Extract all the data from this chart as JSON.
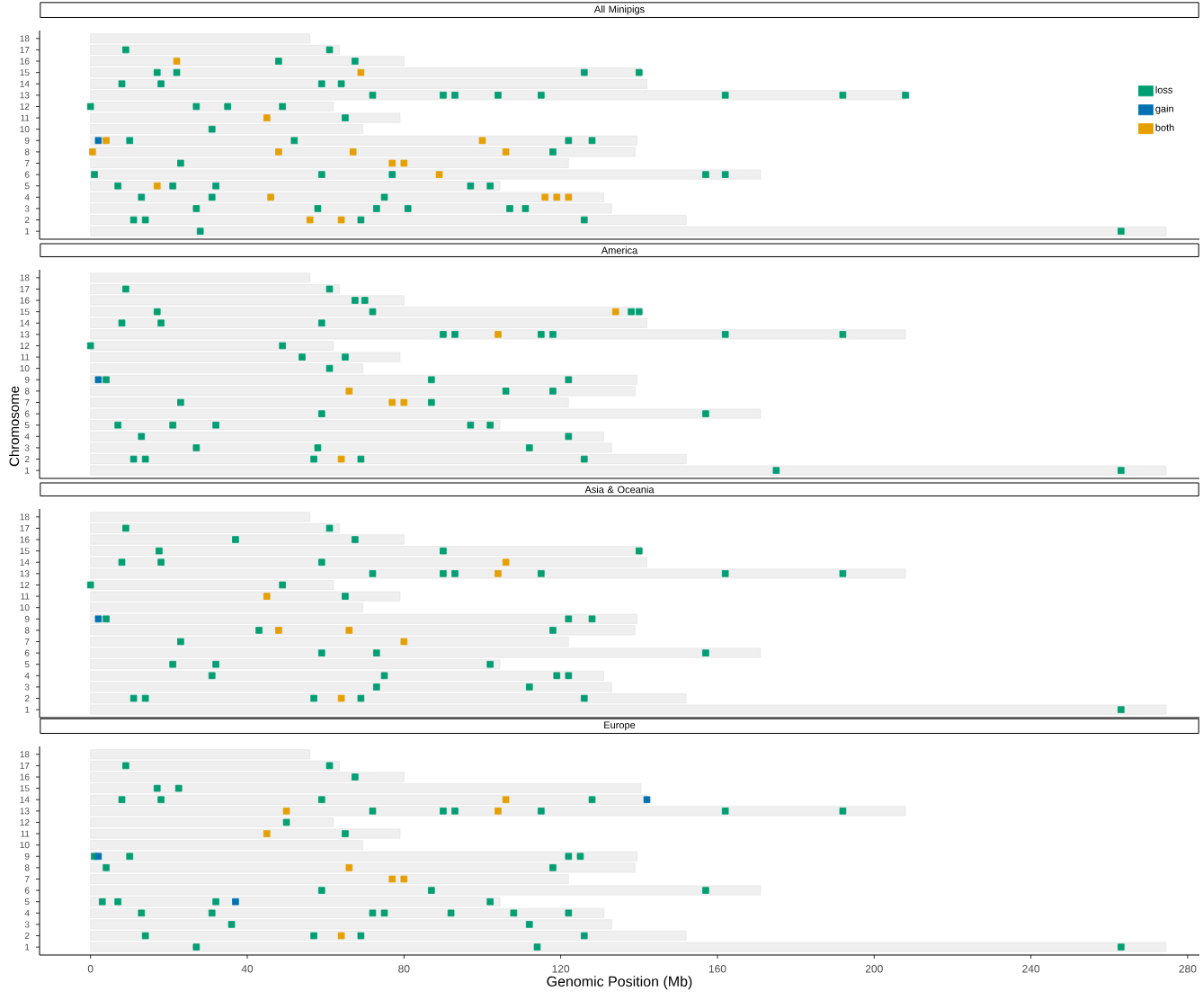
{
  "chart_data": [
    {
      "type": "bar",
      "orientation": "horizontal",
      "title": "All Minipigs",
      "categories": [
        "18",
        "17",
        "16",
        "15",
        "14",
        "13",
        "12",
        "11",
        "10",
        "9",
        "8",
        "7",
        "6",
        "5",
        "4",
        "3",
        "2",
        "1"
      ],
      "xlim": [
        -13,
        283
      ],
      "tick_labels": "y",
      "legend": "right",
      "marker": "square",
      "series": [
        {
          "type": "bar",
          "color": "#efefef",
          "values": [
            56,
            63.5,
            80,
            140.5,
            142,
            208,
            62,
            79,
            69.5,
            139.5,
            139,
            122,
            171,
            104.5,
            131,
            133,
            152,
            274.5
          ]
        },
        {
          "type": "scatter",
          "name": "loss",
          "color": "#009E73",
          "x": [
            "17",
            "17",
            "16",
            "16",
            "15",
            "15",
            "15",
            "15",
            "14",
            "14",
            "14",
            "14",
            "13",
            "13",
            "13",
            "13",
            "13",
            "13",
            "13",
            "13",
            "12",
            "12",
            "12",
            "12",
            "11",
            "10",
            "9",
            "9",
            "9",
            "9",
            "8",
            "7",
            "6",
            "6",
            "6",
            "6",
            "6",
            "5",
            "5",
            "5",
            "5",
            "5",
            "4",
            "4",
            "4",
            "3",
            "3",
            "3",
            "3",
            "3",
            "3",
            "2",
            "2",
            "2",
            "2",
            "1",
            "1"
          ],
          "values": [
            9,
            61,
            48,
            67.5,
            17,
            22,
            126,
            140,
            8,
            18,
            59,
            64,
            72,
            90,
            93,
            104,
            115,
            162,
            192,
            208,
            0,
            27,
            35,
            49,
            65,
            31,
            10,
            52,
            122,
            128,
            118,
            23,
            1,
            59,
            77,
            157,
            162,
            7,
            21,
            32,
            97,
            102,
            13,
            31,
            75,
            27,
            58,
            73,
            81,
            107,
            111,
            11,
            14,
            69,
            126,
            28,
            263
          ]
        },
        {
          "type": "scatter",
          "name": "gain",
          "color": "#0072B2",
          "x": [
            "9"
          ],
          "values": [
            2
          ]
        },
        {
          "type": "scatter",
          "name": "both",
          "color": "#E69F00",
          "x": [
            "16",
            "15",
            "11",
            "9",
            "9",
            "8",
            "8",
            "8",
            "8",
            "7",
            "7",
            "6",
            "5",
            "4",
            "4",
            "4",
            "4",
            "2",
            "2"
          ],
          "values": [
            22,
            69,
            45,
            4,
            100,
            0.5,
            48,
            67,
            106,
            77,
            80,
            89,
            17,
            46,
            116,
            119,
            122,
            56,
            64
          ]
        }
      ]
    },
    {
      "type": "bar",
      "orientation": "horizontal",
      "title": "America",
      "ylabel": "Chromosome",
      "categories": [
        "18",
        "17",
        "16",
        "15",
        "14",
        "13",
        "12",
        "11",
        "10",
        "9",
        "8",
        "7",
        "6",
        "5",
        "4",
        "3",
        "2",
        "1"
      ],
      "xlim": [
        -13,
        283
      ],
      "tick_labels": "y",
      "marker": "square",
      "series": [
        {
          "type": "bar",
          "color": "#efefef",
          "values": [
            56,
            63.5,
            80,
            140.5,
            142,
            208,
            62,
            79,
            69.5,
            139.5,
            139,
            122,
            171,
            104.5,
            131,
            133,
            152,
            274.5
          ]
        },
        {
          "type": "scatter",
          "color": "#009E73",
          "x": [
            "17",
            "17",
            "16",
            "16",
            "15",
            "15",
            "15",
            "15",
            "14",
            "14",
            "14",
            "13",
            "13",
            "13",
            "13",
            "13",
            "13",
            "12",
            "12",
            "11",
            "11",
            "10",
            "9",
            "9",
            "9",
            "8",
            "8",
            "7",
            "7",
            "6",
            "6",
            "5",
            "5",
            "5",
            "5",
            "5",
            "4",
            "4",
            "3",
            "3",
            "3",
            "2",
            "2",
            "2",
            "2",
            "2",
            "1",
            "1"
          ],
          "values": [
            9,
            61,
            67.5,
            70,
            17,
            72,
            138,
            140,
            8,
            18,
            59,
            90,
            93,
            115,
            118,
            162,
            192,
            0,
            49,
            54,
            65,
            61,
            4,
            87,
            122,
            106,
            118,
            23,
            87,
            59,
            157,
            7,
            21,
            32,
            97,
            102,
            13,
            122,
            27,
            58,
            112,
            11,
            14,
            57,
            69,
            126,
            175,
            263
          ]
        },
        {
          "type": "scatter",
          "color": "#0072B2",
          "x": [
            "9"
          ],
          "values": [
            2
          ]
        },
        {
          "type": "scatter",
          "color": "#E69F00",
          "x": [
            "15",
            "13",
            "8",
            "7",
            "7",
            "2"
          ],
          "values": [
            134,
            104,
            66,
            77,
            80,
            64
          ]
        }
      ]
    },
    {
      "type": "bar",
      "orientation": "horizontal",
      "title": "Asia & Oceania",
      "categories": [
        "18",
        "17",
        "16",
        "15",
        "14",
        "13",
        "12",
        "11",
        "10",
        "9",
        "8",
        "7",
        "6",
        "5",
        "4",
        "3",
        "2",
        "1"
      ],
      "xlim": [
        -13,
        283
      ],
      "tick_labels": "y",
      "marker": "square",
      "series": [
        {
          "type": "bar",
          "color": "#efefef",
          "values": [
            56,
            63.5,
            80,
            140.5,
            142,
            208,
            62,
            79,
            69.5,
            139.5,
            139,
            122,
            171,
            104.5,
            131,
            133,
            152,
            274.5
          ]
        },
        {
          "type": "scatter",
          "color": "#009E73",
          "x": [
            "17",
            "17",
            "16",
            "16",
            "15",
            "15",
            "15",
            "14",
            "14",
            "14",
            "13",
            "13",
            "13",
            "13",
            "13",
            "13",
            "12",
            "12",
            "11",
            "9",
            "9",
            "9",
            "8",
            "8",
            "7",
            "6",
            "6",
            "6",
            "5",
            "5",
            "5",
            "4",
            "4",
            "4",
            "4",
            "3",
            "3",
            "2",
            "2",
            "2",
            "2",
            "2",
            "1"
          ],
          "values": [
            9,
            61,
            37,
            67.5,
            17.5,
            90,
            140,
            8,
            18,
            59,
            72,
            90,
            93,
            115,
            162,
            192,
            0,
            49,
            65,
            4,
            122,
            128,
            43,
            118,
            23,
            59,
            73,
            157,
            21,
            32,
            102,
            31,
            75,
            119,
            122,
            73,
            112,
            11,
            14,
            57,
            69,
            126,
            263
          ]
        },
        {
          "type": "scatter",
          "color": "#0072B2",
          "x": [
            "9"
          ],
          "values": [
            2
          ]
        },
        {
          "type": "scatter",
          "color": "#E69F00",
          "x": [
            "14",
            "13",
            "11",
            "8",
            "8",
            "7",
            "2"
          ],
          "values": [
            106,
            104,
            45,
            48,
            66,
            80,
            64
          ]
        }
      ]
    },
    {
      "type": "bar",
      "orientation": "horizontal",
      "title": "Europe",
      "xlabel": "Genomic Position (Mb)",
      "categories": [
        "18",
        "17",
        "16",
        "15",
        "14",
        "13",
        "12",
        "11",
        "10",
        "9",
        "8",
        "7",
        "6",
        "5",
        "4",
        "3",
        "2",
        "1"
      ],
      "xlim": [
        -13,
        283
      ],
      "xticks": [
        0,
        40,
        80,
        120,
        160,
        200,
        240,
        280
      ],
      "marker": "square",
      "series": [
        {
          "type": "bar",
          "color": "#efefef",
          "values": [
            56,
            63.5,
            80,
            140.5,
            142,
            208,
            62,
            79,
            69.5,
            139.5,
            139,
            122,
            171,
            104.5,
            131,
            133,
            152,
            274.5
          ]
        },
        {
          "type": "scatter",
          "color": "#009E73",
          "x": [
            "17",
            "17",
            "16",
            "15",
            "15",
            "14",
            "14",
            "14",
            "14",
            "13",
            "13",
            "13",
            "13",
            "13",
            "13",
            "12",
            "11",
            "9",
            "9",
            "9",
            "9",
            "8",
            "8",
            "6",
            "6",
            "6",
            "5",
            "5",
            "5",
            "5",
            "4",
            "4",
            "4",
            "4",
            "4",
            "4",
            "4",
            "3",
            "3",
            "2",
            "2",
            "2",
            "2",
            "1",
            "1",
            "1"
          ],
          "values": [
            9,
            61,
            67.5,
            17,
            22.5,
            8,
            18,
            59,
            128,
            72,
            90,
            93,
            115,
            162,
            192,
            50,
            65,
            1,
            10,
            122,
            125,
            4,
            118,
            59,
            87,
            157,
            3,
            7,
            32,
            102,
            13,
            31,
            72,
            75,
            92,
            108,
            122,
            36,
            112,
            14,
            57,
            69,
            126,
            27,
            114,
            263
          ]
        },
        {
          "type": "scatter",
          "color": "#0072B2",
          "x": [
            "14",
            "9",
            "5"
          ],
          "values": [
            142,
            2,
            37
          ]
        },
        {
          "type": "scatter",
          "color": "#E69F00",
          "x": [
            "14",
            "13",
            "13",
            "11",
            "8",
            "7",
            "7",
            "2"
          ],
          "values": [
            106,
            50,
            104,
            45,
            66,
            77,
            80,
            64
          ]
        }
      ]
    }
  ]
}
